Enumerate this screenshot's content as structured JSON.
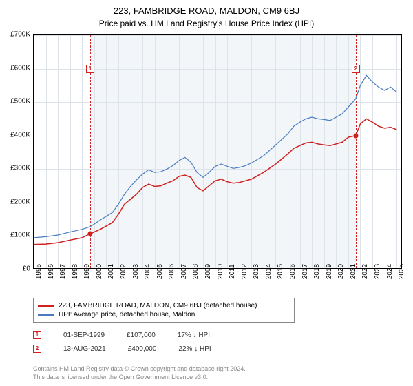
{
  "title": "223, FAMBRIDGE ROAD, MALDON, CM9 6BJ",
  "subtitle": "Price paid vs. HM Land Registry's House Price Index (HPI)",
  "chart": {
    "type": "line",
    "background_color": "#ffffff",
    "plot_bg_color": "#f2f6f9",
    "grid_color": "#dde3e8",
    "border_color": "#000000",
    "xlim": [
      1995,
      2025.5
    ],
    "ylim": [
      0,
      700000
    ],
    "ytick_step": 100000,
    "yticks": [
      "£0",
      "£100K",
      "£200K",
      "£300K",
      "£400K",
      "£500K",
      "£600K",
      "£700K"
    ],
    "xticks": [
      "1995",
      "1996",
      "1997",
      "1998",
      "1999",
      "2000",
      "2001",
      "2002",
      "2003",
      "2004",
      "2005",
      "2006",
      "2007",
      "2008",
      "2009",
      "2010",
      "2011",
      "2012",
      "2013",
      "2014",
      "2015",
      "2016",
      "2017",
      "2018",
      "2019",
      "2020",
      "2021",
      "2022",
      "2023",
      "2024",
      "2025"
    ],
    "series": [
      {
        "name": "223, FAMBRIDGE ROAD, MALDON, CM9 6BJ (detached house)",
        "color": "#d12020",
        "line_width": 1.5,
        "points": [
          [
            1995.0,
            75000
          ],
          [
            1996.0,
            76000
          ],
          [
            1997.0,
            80000
          ],
          [
            1998.0,
            88000
          ],
          [
            1999.0,
            95000
          ],
          [
            1999.67,
            107000
          ],
          [
            2000.5,
            120000
          ],
          [
            2001.5,
            140000
          ],
          [
            2002.0,
            165000
          ],
          [
            2002.5,
            195000
          ],
          [
            2003.0,
            210000
          ],
          [
            2003.5,
            225000
          ],
          [
            2004.0,
            245000
          ],
          [
            2004.5,
            255000
          ],
          [
            2005.0,
            248000
          ],
          [
            2005.5,
            250000
          ],
          [
            2006.0,
            258000
          ],
          [
            2006.5,
            265000
          ],
          [
            2007.0,
            278000
          ],
          [
            2007.5,
            282000
          ],
          [
            2008.0,
            275000
          ],
          [
            2008.5,
            245000
          ],
          [
            2009.0,
            235000
          ],
          [
            2009.5,
            250000
          ],
          [
            2010.0,
            265000
          ],
          [
            2010.5,
            270000
          ],
          [
            2011.0,
            262000
          ],
          [
            2011.5,
            258000
          ],
          [
            2012.0,
            260000
          ],
          [
            2012.5,
            265000
          ],
          [
            2013.0,
            270000
          ],
          [
            2014.0,
            290000
          ],
          [
            2015.0,
            315000
          ],
          [
            2016.0,
            345000
          ],
          [
            2016.5,
            362000
          ],
          [
            2017.0,
            370000
          ],
          [
            2017.5,
            378000
          ],
          [
            2018.0,
            380000
          ],
          [
            2018.5,
            375000
          ],
          [
            2019.0,
            372000
          ],
          [
            2019.5,
            370000
          ],
          [
            2020.0,
            375000
          ],
          [
            2020.5,
            380000
          ],
          [
            2021.0,
            395000
          ],
          [
            2021.62,
            400000
          ],
          [
            2022.0,
            435000
          ],
          [
            2022.5,
            450000
          ],
          [
            2023.0,
            440000
          ],
          [
            2023.5,
            428000
          ],
          [
            2024.0,
            422000
          ],
          [
            2024.5,
            425000
          ],
          [
            2025.0,
            418000
          ]
        ]
      },
      {
        "name": "HPI: Average price, detached house, Maldon",
        "color": "#4a7bbf",
        "line_width": 1.2,
        "points": [
          [
            1995.0,
            95000
          ],
          [
            1996.0,
            98000
          ],
          [
            1997.0,
            103000
          ],
          [
            1998.0,
            112000
          ],
          [
            1999.0,
            120000
          ],
          [
            1999.67,
            128000
          ],
          [
            2000.5,
            148000
          ],
          [
            2001.5,
            170000
          ],
          [
            2002.0,
            195000
          ],
          [
            2002.5,
            225000
          ],
          [
            2003.0,
            248000
          ],
          [
            2003.5,
            268000
          ],
          [
            2004.0,
            285000
          ],
          [
            2004.5,
            298000
          ],
          [
            2005.0,
            290000
          ],
          [
            2005.5,
            292000
          ],
          [
            2006.0,
            300000
          ],
          [
            2006.5,
            310000
          ],
          [
            2007.0,
            325000
          ],
          [
            2007.5,
            335000
          ],
          [
            2008.0,
            320000
          ],
          [
            2008.5,
            290000
          ],
          [
            2009.0,
            275000
          ],
          [
            2009.5,
            290000
          ],
          [
            2010.0,
            308000
          ],
          [
            2010.5,
            315000
          ],
          [
            2011.0,
            308000
          ],
          [
            2011.5,
            302000
          ],
          [
            2012.0,
            305000
          ],
          [
            2012.5,
            310000
          ],
          [
            2013.0,
            318000
          ],
          [
            2014.0,
            340000
          ],
          [
            2015.0,
            372000
          ],
          [
            2016.0,
            405000
          ],
          [
            2016.5,
            428000
          ],
          [
            2017.0,
            440000
          ],
          [
            2017.5,
            450000
          ],
          [
            2018.0,
            455000
          ],
          [
            2018.5,
            450000
          ],
          [
            2019.0,
            448000
          ],
          [
            2019.5,
            445000
          ],
          [
            2020.0,
            455000
          ],
          [
            2020.5,
            465000
          ],
          [
            2021.0,
            485000
          ],
          [
            2021.62,
            510000
          ],
          [
            2022.0,
            550000
          ],
          [
            2022.5,
            580000
          ],
          [
            2023.0,
            560000
          ],
          [
            2023.5,
            545000
          ],
          [
            2024.0,
            535000
          ],
          [
            2024.5,
            545000
          ],
          [
            2025.0,
            530000
          ]
        ]
      }
    ],
    "transaction_markers": [
      {
        "n": "1",
        "x": 1999.67,
        "y_box": 600000,
        "color": "#d12020"
      },
      {
        "n": "2",
        "x": 2021.62,
        "y_box": 600000,
        "color": "#d12020"
      }
    ],
    "data_points": [
      {
        "x": 1999.67,
        "y": 107000,
        "color": "#d12020"
      },
      {
        "x": 2021.62,
        "y": 400000,
        "color": "#d12020"
      }
    ]
  },
  "legend": {
    "items": [
      {
        "label": "223, FAMBRIDGE ROAD, MALDON, CM9 6BJ (detached house)",
        "color": "#d12020"
      },
      {
        "label": "HPI: Average price, detached house, Maldon",
        "color": "#4a7bbf"
      }
    ]
  },
  "transactions": [
    {
      "n": "1",
      "date": "01-SEP-1999",
      "price": "£107,000",
      "pct": "17%",
      "arrow": "↓",
      "suffix": "HPI",
      "color": "#d12020"
    },
    {
      "n": "2",
      "date": "13-AUG-2021",
      "price": "£400,000",
      "pct": "22%",
      "arrow": "↓",
      "suffix": "HPI",
      "color": "#d12020"
    }
  ],
  "footer": {
    "line1": "Contains HM Land Registry data © Crown copyright and database right 2024.",
    "line2": "This data is licensed under the Open Government Licence v3.0."
  }
}
